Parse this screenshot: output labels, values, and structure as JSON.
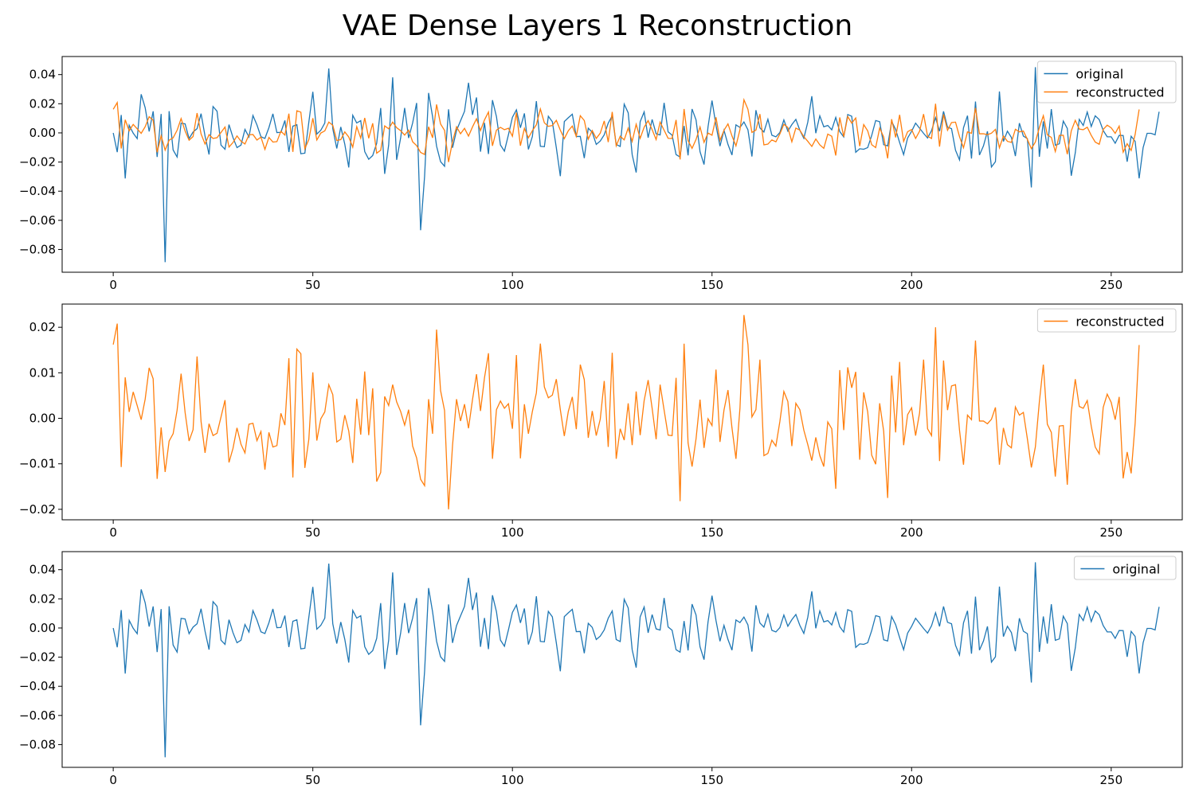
{
  "figure": {
    "title": "VAE Dense Layers 1 Reconstruction"
  },
  "colors": {
    "original": "#1f77b4",
    "reconstructed": "#ff7f0e",
    "axes": "#000000"
  },
  "series_names": {
    "original": "original",
    "reconstructed": "reconstructed"
  },
  "chart_data": [
    {
      "type": "line",
      "title": "",
      "xlabel": "",
      "ylabel": "",
      "xlim": [
        -12.8,
        267.8
      ],
      "ylim": [
        -0.0956,
        0.0524
      ],
      "xticks": [
        0,
        50,
        100,
        150,
        200,
        250
      ],
      "yticks": [
        -0.08,
        -0.06,
        -0.04,
        -0.02,
        0.0,
        0.02,
        0.04
      ],
      "ytick_labels": [
        "−0.08",
        "−0.06",
        "−0.04",
        "−0.02",
        "0.00",
        "0.02",
        "0.04"
      ],
      "legend_position": "upper-right",
      "series_keys": [
        "original",
        "reconstructed"
      ],
      "grid": false
    },
    {
      "type": "line",
      "title": "",
      "xlabel": "",
      "ylabel": "",
      "xlim": [
        -12.8,
        267.8
      ],
      "ylim": [
        -0.0223,
        0.0251
      ],
      "xticks": [
        0,
        50,
        100,
        150,
        200,
        250
      ],
      "yticks": [
        -0.02,
        -0.01,
        0.0,
        0.01,
        0.02
      ],
      "ytick_labels": [
        "−0.02",
        "−0.01",
        "0.00",
        "0.01",
        "0.02"
      ],
      "legend_position": "upper-right",
      "series_keys": [
        "reconstructed"
      ],
      "grid": false
    },
    {
      "type": "line",
      "title": "",
      "xlabel": "",
      "ylabel": "",
      "xlim": [
        -12.8,
        267.8
      ],
      "ylim": [
        -0.0956,
        0.0524
      ],
      "xticks": [
        0,
        50,
        100,
        150,
        200,
        250
      ],
      "yticks": [
        -0.08,
        -0.06,
        -0.04,
        -0.02,
        0.0,
        0.02,
        0.04
      ],
      "ytick_labels": [
        "−0.08",
        "−0.06",
        "−0.04",
        "−0.02",
        "0.00",
        "0.02",
        "0.04"
      ],
      "legend_position": "upper-right",
      "series_keys": [
        "original"
      ],
      "grid": false
    }
  ],
  "series": {
    "original": [
      0.0,
      -0.0132,
      0.0123,
      -0.0313,
      0.0052,
      -0.0002,
      -0.0039,
      0.0265,
      0.0173,
      0.001,
      0.0148,
      -0.0165,
      0.013,
      -0.0887,
      0.0149,
      -0.0117,
      -0.0165,
      0.0066,
      0.0062,
      -0.0039,
      0.0006,
      0.0029,
      0.0132,
      -0.0022,
      -0.0148,
      0.0181,
      0.0149,
      -0.0084,
      -0.0112,
      0.0057,
      -0.0032,
      -0.0101,
      -0.0084,
      0.0024,
      -0.0028,
      0.0119,
      0.0055,
      -0.0026,
      -0.0038,
      0.0036,
      0.0131,
      0.0002,
      0.0004,
      0.0085,
      -0.0131,
      0.0046,
      0.0056,
      -0.0143,
      -0.0139,
      0.0074,
      0.0282,
      -0.0008,
      0.0018,
      0.0068,
      0.0442,
      0.0029,
      -0.0107,
      0.0041,
      -0.0077,
      -0.0237,
      0.0121,
      0.0068,
      0.0084,
      -0.0128,
      -0.0181,
      -0.0155,
      -0.0071,
      0.0171,
      -0.0281,
      -0.0083,
      0.0381,
      -0.0185,
      -0.0034,
      0.0171,
      -0.0035,
      0.0068,
      0.0205,
      -0.0668,
      -0.0297,
      0.0274,
      0.0111,
      -0.0091,
      -0.0197,
      -0.0229,
      0.0162,
      -0.0102,
      0.0017,
      0.0083,
      0.0148,
      0.0344,
      0.0124,
      0.0243,
      -0.0129,
      0.0069,
      -0.0145,
      0.0225,
      0.0112,
      -0.0083,
      -0.0125,
      -0.0013,
      0.0107,
      0.0158,
      0.0035,
      0.0134,
      -0.0113,
      -0.0025,
      0.0218,
      -0.0092,
      -0.0095,
      0.0114,
      0.0077,
      -0.0102,
      -0.0297,
      0.0078,
      0.0104,
      0.0128,
      -0.0025,
      -0.0024,
      -0.0173,
      0.0032,
      0.0004,
      -0.0079,
      -0.0056,
      -0.0013,
      0.0067,
      0.0117,
      -0.0079,
      -0.0093,
      0.0197,
      0.0138,
      -0.0149,
      -0.0272,
      0.0077,
      0.0144,
      -0.0033,
      0.0092,
      -0.0006,
      -0.0014,
      0.0206,
      0.0007,
      -0.0015,
      -0.0149,
      -0.0166,
      0.0048,
      -0.0154,
      0.0164,
      0.0089,
      -0.0129,
      -0.0217,
      0.0041,
      0.0222,
      0.0051,
      -0.0091,
      0.0018,
      -0.0079,
      -0.0152,
      0.0055,
      0.0037,
      0.0075,
      0.0021,
      -0.0162,
      0.0156,
      0.0034,
      0.0006,
      0.0094,
      -0.0016,
      -0.0027,
      0.0003,
      0.0089,
      0.0012,
      0.0057,
      0.0093,
      0.0018,
      -0.0037,
      0.0075,
      0.0252,
      -0.0002,
      0.0117,
      0.0042,
      0.0051,
      0.0021,
      0.0106,
      0.0009,
      -0.0028,
      0.0126,
      0.0114,
      -0.0133,
      -0.0109,
      -0.0112,
      -0.0101,
      -0.0018,
      0.0085,
      0.0077,
      -0.0081,
      -0.0089,
      0.0079,
      0.0023,
      -0.0066,
      -0.0149,
      -0.0035,
      0.0011,
      0.0067,
      0.0032,
      -0.0003,
      -0.0035,
      0.0016,
      0.0105,
      0.0011,
      0.0148,
      0.0039,
      0.0029,
      -0.0119,
      -0.0185,
      0.0035,
      0.0118,
      -0.0176,
      0.0215,
      -0.0152,
      -0.0089,
      0.0011,
      -0.0234,
      -0.0198,
      0.0284,
      -0.0059,
      0.0012,
      -0.0031,
      -0.0159,
      0.0067,
      -0.0022,
      -0.0039,
      -0.0374,
      0.0451,
      -0.0164,
      0.0079,
      -0.0107,
      0.0163,
      -0.0084,
      -0.0075,
      0.0081,
      0.0031,
      -0.0294,
      -0.0137,
      0.0093,
      0.0051,
      0.0143,
      0.0044,
      0.0117,
      0.0091,
      0.0016,
      -0.0027,
      -0.0027,
      -0.0071,
      -0.0017,
      -0.0018,
      -0.0198,
      -0.0023,
      -0.0058,
      -0.0312,
      -0.0101,
      -0.0003,
      -0.0003,
      -0.0013,
      0.0145
    ],
    "reconstructed": [
      0.0162,
      0.0208,
      -0.0107,
      0.009,
      0.0014,
      0.0058,
      0.0028,
      -0.0003,
      0.0042,
      0.0111,
      0.0087,
      -0.0133,
      -0.002,
      -0.0118,
      -0.005,
      -0.0034,
      0.0018,
      0.0098,
      0.0013,
      -0.005,
      -0.0025,
      0.0136,
      -0.0007,
      -0.0076,
      -0.0012,
      -0.0038,
      -0.0033,
      0.0003,
      0.004,
      -0.0097,
      -0.0066,
      -0.0021,
      -0.0057,
      -0.0076,
      -0.0013,
      -0.0011,
      -0.0049,
      -0.0029,
      -0.0113,
      -0.0031,
      -0.0063,
      -0.006,
      0.0011,
      -0.0015,
      0.0132,
      -0.013,
      0.0152,
      0.0142,
      -0.0109,
      -0.0046,
      0.0101,
      -0.0049,
      -0.0001,
      0.0014,
      0.0074,
      0.0052,
      -0.0052,
      -0.0046,
      0.0007,
      -0.0028,
      -0.0098,
      0.0043,
      -0.0036,
      0.0103,
      -0.0037,
      0.0066,
      -0.0139,
      -0.0119,
      0.0048,
      0.0028,
      0.0074,
      0.0036,
      0.0015,
      -0.0015,
      0.0019,
      -0.0061,
      -0.0087,
      -0.0134,
      -0.0148,
      0.0042,
      -0.0034,
      0.0195,
      0.0061,
      0.0017,
      -0.02,
      -0.0059,
      0.0042,
      -0.0006,
      0.0031,
      -0.0022,
      0.0041,
      0.0097,
      0.0016,
      0.0089,
      0.0143,
      -0.0089,
      0.0019,
      0.0038,
      0.0022,
      0.0032,
      -0.0023,
      0.0139,
      -0.0088,
      0.0031,
      -0.0034,
      0.0015,
      0.0056,
      0.0164,
      0.0069,
      0.0045,
      0.0051,
      0.0086,
      0.0019,
      -0.0039,
      0.0015,
      0.0047,
      -0.0024,
      0.0118,
      0.0085,
      -0.0043,
      0.0016,
      -0.0038,
      -0.0002,
      0.0082,
      -0.0063,
      0.0144,
      -0.0089,
      -0.0023,
      -0.0048,
      0.0033,
      -0.0059,
      0.0059,
      -0.0037,
      0.0039,
      0.0084,
      0.0022,
      -0.0046,
      0.0074,
      0.0018,
      -0.0037,
      -0.0038,
      0.0089,
      -0.0182,
      0.0164,
      -0.0054,
      -0.0106,
      -0.0045,
      0.0041,
      -0.0065,
      -0.0001,
      -0.0016,
      0.0107,
      -0.0052,
      0.0018,
      0.0062,
      -0.0021,
      -0.0089,
      0.0022,
      0.0227,
      0.0162,
      0.0003,
      0.0019,
      0.0129,
      -0.0082,
      -0.0077,
      -0.0048,
      -0.0061,
      -0.0007,
      0.0059,
      0.0037,
      -0.0061,
      0.0033,
      0.0019,
      -0.0026,
      -0.0058,
      -0.0093,
      -0.0042,
      -0.0082,
      -0.0106,
      -0.0008,
      -0.0023,
      -0.0155,
      0.0106,
      -0.0026,
      0.0112,
      0.0067,
      0.0102,
      -0.0091,
      0.0057,
      0.0014,
      -0.0081,
      -0.0101,
      0.0033,
      -0.0028,
      -0.0175,
      0.0094,
      -0.0031,
      0.0124,
      -0.0059,
      0.0008,
      0.0023,
      -0.0038,
      0.0012,
      0.0129,
      -0.0023,
      -0.0038,
      0.02,
      -0.0094,
      0.0127,
      0.0018,
      0.0071,
      0.0074,
      -0.0026,
      -0.0102,
      0.0007,
      -0.0003,
      0.0171,
      -0.0006,
      -0.0006,
      -0.0012,
      -0.0002,
      0.0024,
      -0.0102,
      -0.0021,
      -0.0058,
      -0.0065,
      0.0025,
      0.0007,
      0.0013,
      -0.0045,
      -0.0108,
      -0.0063,
      0.0036,
      0.0118,
      -0.0013,
      -0.0031,
      -0.0128,
      -0.0017,
      -0.0016,
      -0.0146,
      0.0014,
      0.0086,
      0.0026,
      0.0022,
      0.0039,
      -0.0017,
      -0.0063,
      -0.0078,
      0.0024,
      0.0053,
      0.0035,
      -0.0003,
      0.0047,
      -0.0132,
      -0.0074,
      -0.0121,
      -0.0011,
      0.0161
    ]
  }
}
